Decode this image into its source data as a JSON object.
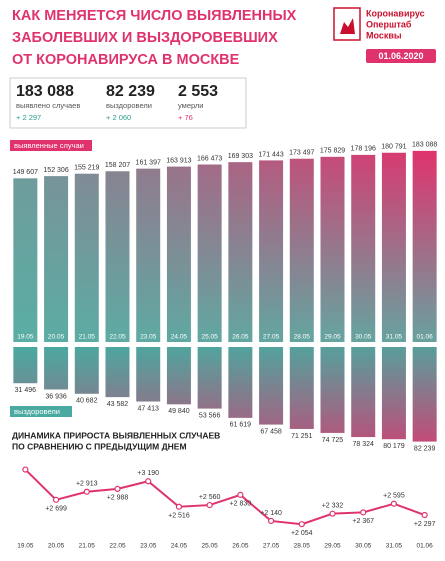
{
  "header": {
    "title": [
      "КАК МЕНЯЕТСЯ ЧИСЛО ВЫЯВЛЕННЫХ",
      "ЗАБОЛЕВШИХ И ВЫЗДОРОВЕВШИХ",
      "ОТ КОРОНАВИРУСА В МОСКВЕ"
    ],
    "logo": [
      "Коронавирус",
      "Оперштаб",
      "Москвы"
    ],
    "date": "01.06.2020",
    "stats": [
      {
        "value": "183 088",
        "label": "выявлено случаев",
        "delta": "+ 2 297"
      },
      {
        "value": "82 239",
        "label": "выздоровели",
        "delta": "+ 2 060"
      },
      {
        "value": "2 553",
        "label": "умерли",
        "delta": "+ 76"
      }
    ]
  },
  "chart_data": [
    {
      "type": "bar",
      "direction": "up",
      "categories": [
        "19.05",
        "20.05",
        "21.05",
        "22.05",
        "23.05",
        "24.05",
        "25.05",
        "26.05",
        "27.05",
        "28.05",
        "29.05",
        "30.05",
        "31.05",
        "01.06"
      ],
      "ylim": [
        -50000,
        200000
      ],
      "series": [
        {
          "name": "выявленные случаи",
          "color": "#e0336e",
          "base_color": "#5aaea4",
          "values": [
            149607,
            152306,
            155219,
            158207,
            161397,
            163913,
            166473,
            169303,
            171443,
            173497,
            175829,
            178196,
            180791,
            183088
          ],
          "value_labels": [
            "149 607",
            "152 306",
            "155 219",
            "158 207",
            "161 397",
            "163 913",
            "166 473",
            "169 303",
            "171 443",
            "173 497",
            "175 829",
            "178 196",
            "180 791",
            "183 088"
          ]
        }
      ]
    },
    {
      "type": "bar",
      "direction": "down",
      "ylim": [
        0,
        100000
      ],
      "series": [
        {
          "name": "выздоровели",
          "color": "#4aa9a0",
          "base_color": "#e0336e",
          "values": [
            31496,
            36936,
            40682,
            43582,
            47413,
            49840,
            53566,
            61619,
            67458,
            71251,
            74725,
            78324,
            80179,
            82239
          ],
          "value_labels": [
            "31 496",
            "36 936",
            "40 682",
            "43 582",
            "47 413",
            "49 840",
            "53 566",
            "61 619",
            "67 458",
            "71 251",
            "74 725",
            "78 324",
            "80 179",
            "82 239"
          ]
        }
      ]
    },
    {
      "type": "line",
      "title": [
        "ДИНАМИКА ПРИРОСТА ВЫЯВЛЕННЫХ СЛУЧАЕВ",
        "ПО СРАВНЕНИЮ С ПРЕДЫДУЩИМ ДНЕМ"
      ],
      "color": "#e0336e",
      "categories": [
        "19.05",
        "20.05",
        "21.05",
        "22.05",
        "23.05",
        "24.05",
        "25.05",
        "26.05",
        "27.05",
        "28.05",
        "29.05",
        "30.05",
        "31.05",
        "01.06"
      ],
      "ylim": [
        1900,
        3700
      ],
      "values": [
        3500,
        2699,
        2913,
        2988,
        3190,
        2516,
        2560,
        2830,
        2140,
        2054,
        2332,
        2367,
        2595,
        2297
      ],
      "value_labels": [
        null,
        "+2 699",
        "+2 913",
        "+2 988",
        "+3 190",
        "+2 516",
        "+2 560",
        "+2 830",
        "+2 140",
        "+2 054",
        "+2 332",
        "+2 367",
        "+2 595",
        "+2 297"
      ]
    }
  ]
}
